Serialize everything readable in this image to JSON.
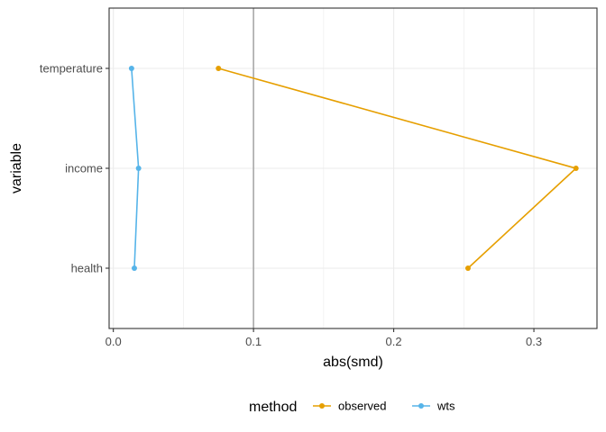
{
  "chart_data": {
    "type": "line",
    "title": "",
    "xlabel": "abs(smd)",
    "ylabel": "variable",
    "categories": [
      "temperature",
      "income",
      "health"
    ],
    "xlim": [
      -0.003,
      0.345
    ],
    "xticks": [
      "0.0",
      "0.1",
      "0.2",
      "0.3"
    ],
    "xtick_values": [
      0,
      0.1,
      0.2,
      0.3
    ],
    "reference_line_x": 0.1,
    "grid": true,
    "legend": {
      "title": "method",
      "placement": "bottom"
    },
    "series": [
      {
        "name": "observed",
        "color": "#E69F00",
        "values": [
          0.075,
          0.33,
          0.253
        ]
      },
      {
        "name": "wts",
        "color": "#56B4E9",
        "values": [
          0.013,
          0.018,
          0.015
        ]
      }
    ]
  }
}
